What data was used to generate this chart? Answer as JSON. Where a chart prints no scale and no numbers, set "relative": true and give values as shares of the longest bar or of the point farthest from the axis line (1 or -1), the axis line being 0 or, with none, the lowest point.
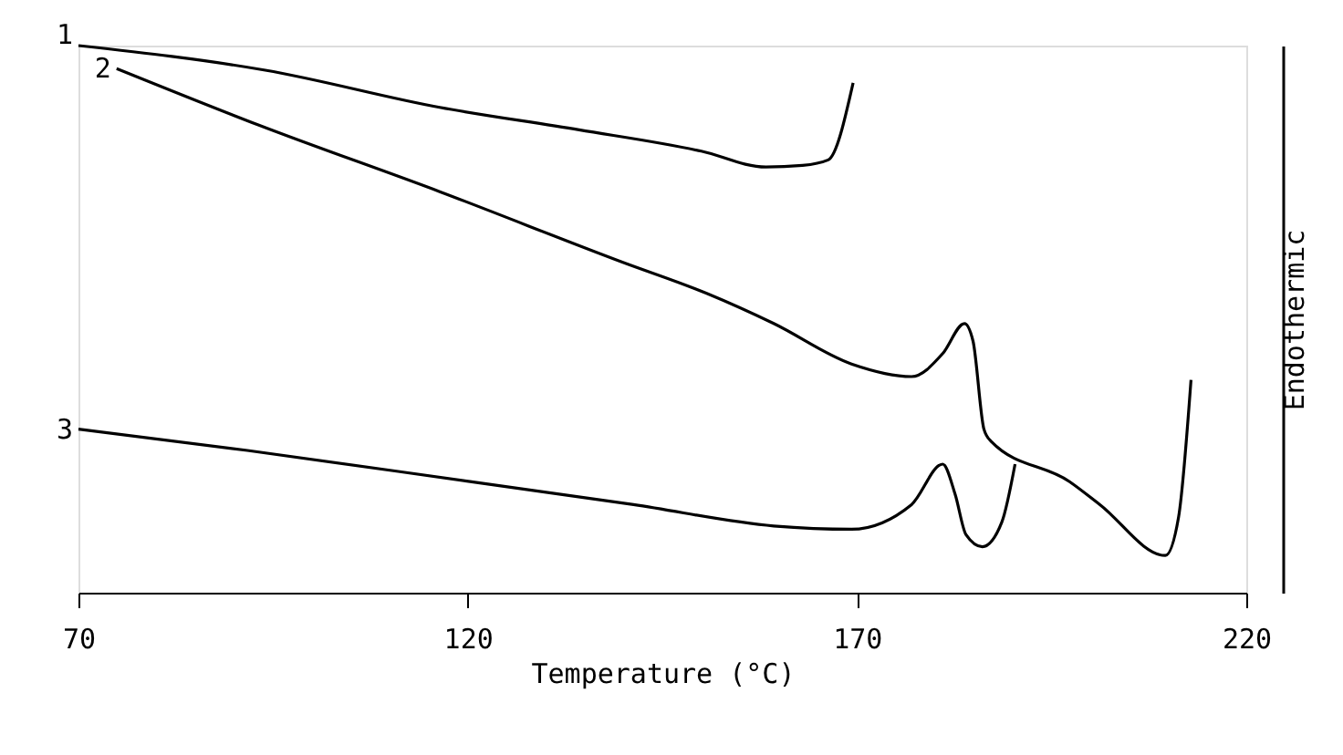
{
  "chart_data": {
    "type": "line",
    "xlabel": "Temperature (°C)",
    "ylabel": "Endothermic",
    "relative": true,
    "xlim": [
      70,
      220
    ],
    "xticks": [
      70,
      120,
      170,
      220
    ],
    "grid": false,
    "line_style": "solid",
    "marker": "none",
    "series": [
      {
        "name": "1",
        "color": "#000000",
        "x": [
          70,
          94,
          116.4,
          134.3,
          150,
          158.3,
          163,
          166.3,
          169.5
        ],
        "values": [
          1.0,
          0.955,
          0.887,
          0.846,
          0.807,
          0.778,
          0.781,
          0.791,
          0.932
        ]
      },
      {
        "name": "2",
        "color": "#000000",
        "x": [
          74.9,
          93.1,
          116.4,
          139.7,
          150.7,
          159.3,
          169.3,
          177,
          181,
          183.8,
          184.9,
          186.3,
          187.2,
          197.3,
          201.2,
          209.6,
          211.3,
          212.9
        ],
        "values": [
          0.958,
          0.855,
          0.733,
          0.605,
          0.547,
          0.492,
          0.418,
          0.395,
          0.437,
          0.492,
          0.46,
          0.299,
          0.277,
          0.203,
          0.161,
          0.068,
          0.138,
          0.389
        ]
      },
      {
        "name": "3",
        "color": "#000000",
        "x": [
          70,
          91.7,
          120.3,
          141.3,
          159.3,
          169.3,
          177,
          181,
          182.6,
          184,
          186.1,
          188.6,
          190.3
        ],
        "values": [
          0.299,
          0.26,
          0.203,
          0.161,
          0.122,
          0.116,
          0.161,
          0.235,
          0.18,
          0.106,
          0.084,
          0.129,
          0.235
        ]
      }
    ]
  }
}
